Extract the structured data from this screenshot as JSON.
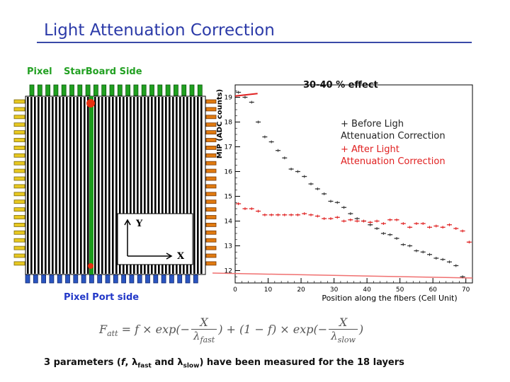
{
  "slide": {
    "title": "Light Attenuation Correction",
    "summary_prefix": "3 parameters (",
    "summary_f": "f",
    "summary_comma": ", ",
    "summary_lambda": "λ",
    "summary_fast_sub": "fast",
    "summary_and": " and ",
    "summary_slow_sub": "slow",
    "summary_suffix": ") have been measured for the 18 layers"
  },
  "detector": {
    "pixel_label": "Pixel",
    "starboard_label": "StarBoard Side",
    "port_label": "Pixel Port side",
    "axis_y": "Y",
    "axis_x": "X",
    "colors": {
      "fiber": "#000000",
      "fiber_highlight": "#1a9a1a",
      "top_connector": "#20a020",
      "bottom_connector": "#2a55c0",
      "left_connector": "#e8c820",
      "right_connector": "#e07a10",
      "hit": "#e83010"
    }
  },
  "formula": {
    "lhs": "F",
    "lhs_sub": "att",
    "eq": " = f × exp(−",
    "num": "X",
    "den": "λ",
    "den_fast_sub": "fast",
    "den_slow_sub": "slow",
    "mid": ") + (1 − f) × exp(−",
    "end": ")"
  },
  "chart_data": {
    "type": "scatter",
    "annotation": "30-40 % effect",
    "xlabel": "Position along the fibers (Cell Unit)",
    "ylabel": "MIP (ADC counts)",
    "xlim": [
      0,
      72
    ],
    "ylim": [
      11.5,
      19.5
    ],
    "x_ticks": [
      0,
      10,
      20,
      30,
      40,
      50,
      60,
      70
    ],
    "y_ticks": [
      12,
      13,
      14,
      15,
      16,
      17,
      18,
      19
    ],
    "grid": false,
    "colors": {
      "before": "#333333",
      "after": "#e02020",
      "line": "#f07070"
    },
    "legend": [
      {
        "line1": "+ Before Ligh",
        "line2": "Attenuation Correction"
      },
      {
        "line1": "+ After Light",
        "line2": "Attenuation Correction"
      }
    ],
    "series": [
      {
        "points": [
          [
            1,
            19.2
          ],
          [
            3,
            19.0
          ],
          [
            5,
            18.8
          ],
          [
            7,
            18.0
          ],
          [
            9,
            17.4
          ],
          [
            11,
            17.2
          ],
          [
            13,
            16.85
          ],
          [
            15,
            16.55
          ],
          [
            17,
            16.1
          ],
          [
            19,
            16.0
          ],
          [
            21,
            15.8
          ],
          [
            23,
            15.5
          ],
          [
            25,
            15.3
          ],
          [
            27,
            15.1
          ],
          [
            29,
            14.8
          ],
          [
            31,
            14.75
          ],
          [
            33,
            14.55
          ],
          [
            35,
            14.3
          ],
          [
            37,
            14.1
          ],
          [
            39,
            14.0
          ],
          [
            41,
            13.85
          ],
          [
            43,
            13.7
          ],
          [
            45,
            13.5
          ],
          [
            47,
            13.45
          ],
          [
            49,
            13.3
          ],
          [
            51,
            13.05
          ],
          [
            53,
            13.0
          ],
          [
            55,
            12.8
          ],
          [
            57,
            12.75
          ],
          [
            59,
            12.65
          ],
          [
            61,
            12.5
          ],
          [
            63,
            12.45
          ],
          [
            65,
            12.35
          ],
          [
            67,
            12.2
          ],
          [
            69,
            11.75
          ]
        ]
      },
      {
        "points": [
          [
            1,
            14.7
          ],
          [
            3,
            14.5
          ],
          [
            5,
            14.5
          ],
          [
            7,
            14.4
          ],
          [
            9,
            14.25
          ],
          [
            11,
            14.25
          ],
          [
            13,
            14.25
          ],
          [
            15,
            14.25
          ],
          [
            17,
            14.25
          ],
          [
            19,
            14.25
          ],
          [
            21,
            14.3
          ],
          [
            23,
            14.25
          ],
          [
            25,
            14.2
          ],
          [
            27,
            14.1
          ],
          [
            29,
            14.1
          ],
          [
            31,
            14.15
          ],
          [
            33,
            14.0
          ],
          [
            35,
            14.05
          ],
          [
            37,
            14.0
          ],
          [
            39,
            14.0
          ],
          [
            41,
            13.95
          ],
          [
            43,
            14.0
          ],
          [
            45,
            13.9
          ],
          [
            47,
            14.05
          ],
          [
            49,
            14.05
          ],
          [
            51,
            13.9
          ],
          [
            53,
            13.75
          ],
          [
            55,
            13.9
          ],
          [
            57,
            13.9
          ],
          [
            59,
            13.75
          ],
          [
            61,
            13.8
          ],
          [
            63,
            13.75
          ],
          [
            65,
            13.85
          ],
          [
            67,
            13.7
          ],
          [
            69,
            13.6
          ],
          [
            71,
            13.15
          ]
        ]
      }
    ],
    "markers": [
      {
        "x": [
          0,
          2.5
        ],
        "y": [
          19.05,
          19.15
        ]
      },
      {
        "x": [
          0,
          72
        ],
        "y": [
          11.9,
          11.7
        ]
      }
    ]
  }
}
